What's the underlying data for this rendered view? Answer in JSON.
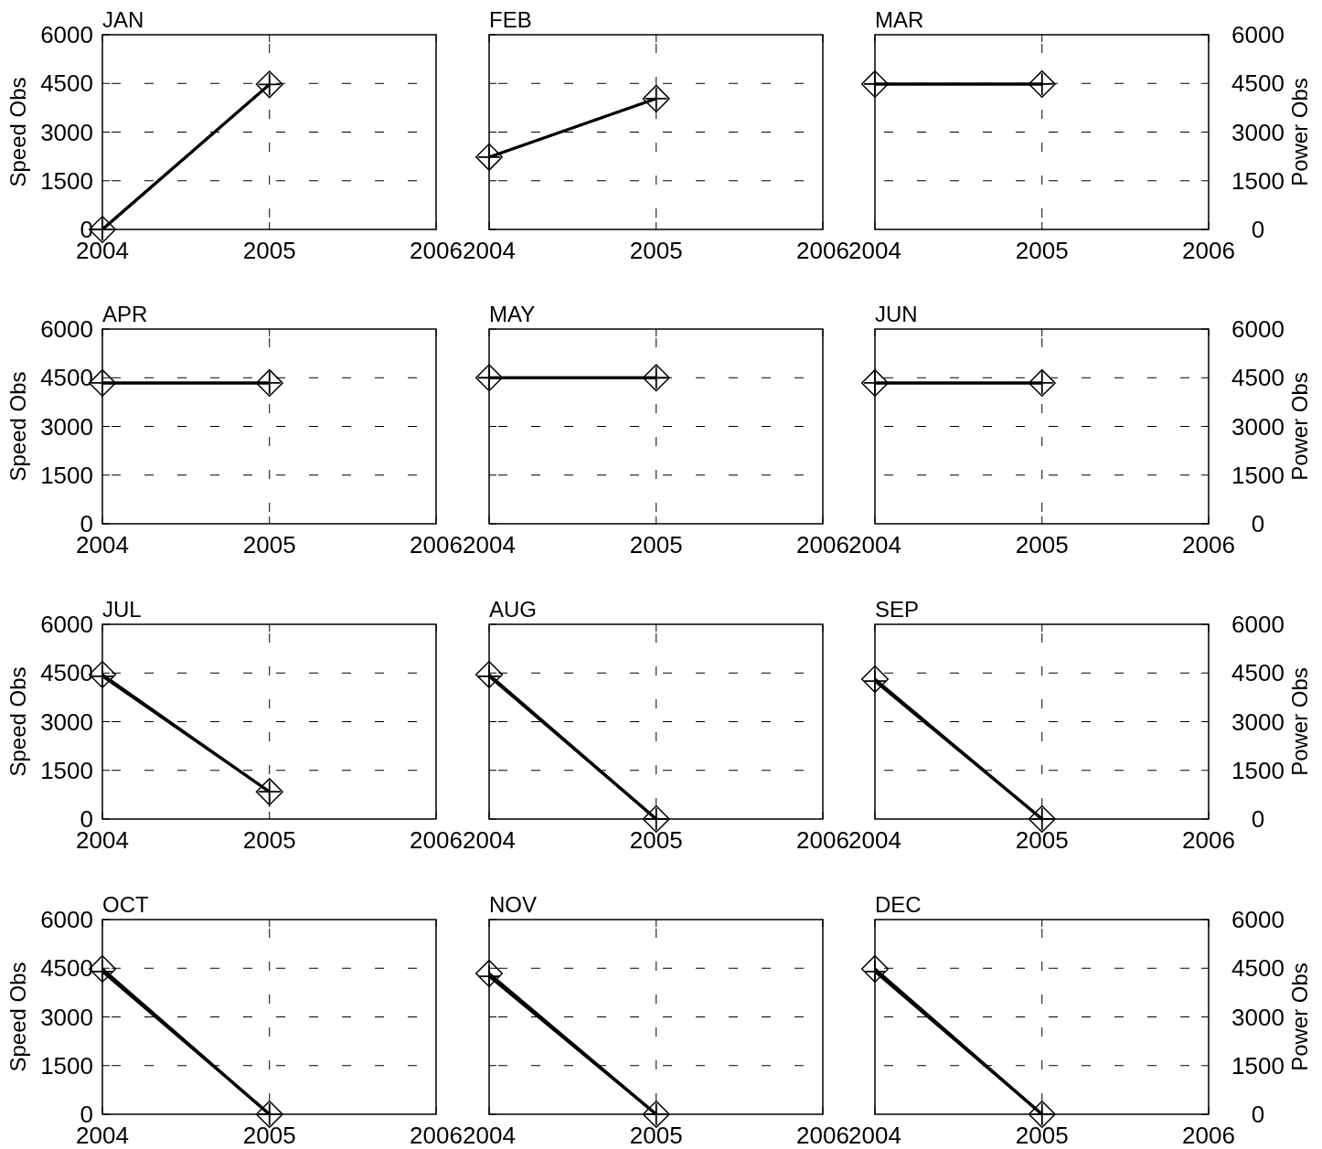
{
  "chart_data": [
    {
      "type": "line",
      "title": "JAN",
      "x": [
        "2004",
        "2005"
      ],
      "xlim": [
        "2004",
        "2006"
      ],
      "xticks": [
        "2004",
        "2005",
        "2006"
      ],
      "ylim": [
        0,
        6000
      ],
      "yticks": [
        0,
        1500,
        3000,
        4500,
        6000
      ],
      "ylabel": "Speed Obs",
      "grid": true,
      "line_style": "solid",
      "series": [
        {
          "color": "#000000",
          "marker": "cross",
          "values": [
            0,
            4470
          ]
        },
        {
          "color": "#000000",
          "marker": "diamond",
          "values": [
            0,
            4470
          ]
        }
      ]
    },
    {
      "type": "line",
      "title": "FEB",
      "x": [
        "2004",
        "2005"
      ],
      "xlim": [
        "2004",
        "2006"
      ],
      "xticks": [
        "2004",
        "2005",
        "2006"
      ],
      "ylim": [
        0,
        6000
      ],
      "yticks": [
        0,
        1500,
        3000,
        4500,
        6000
      ],
      "tick_labels": "x",
      "grid": true,
      "line_style": "solid",
      "series": [
        {
          "color": "#000000",
          "marker": "diamond",
          "values": [
            2230,
            4030
          ]
        },
        {
          "color": "#000000",
          "marker": "cross",
          "values": [
            2230,
            4030
          ]
        }
      ]
    },
    {
      "type": "line",
      "title": "MAR",
      "x": [
        "2004",
        "2005"
      ],
      "xlim": [
        "2004",
        "2006"
      ],
      "xticks": [
        "2004",
        "2005",
        "2006"
      ],
      "y2lim": [
        0,
        6000
      ],
      "y2ticks": [
        0,
        1500,
        3000,
        4500,
        6000
      ],
      "y2label": "Power Obs",
      "grid": true,
      "line_style": "solid",
      "series": [
        {
          "color": "#000000",
          "marker": "diamond",
          "axis": "y2",
          "values": [
            4480,
            4480
          ]
        },
        {
          "color": "#000000",
          "marker": "cross",
          "axis": "y2",
          "values": [
            4480,
            4480
          ]
        }
      ]
    },
    {
      "type": "line",
      "title": "APR",
      "x": [
        "2004",
        "2005"
      ],
      "xlim": [
        "2004",
        "2006"
      ],
      "xticks": [
        "2004",
        "2005",
        "2006"
      ],
      "ylim": [
        0,
        6000
      ],
      "yticks": [
        0,
        1500,
        3000,
        4500,
        6000
      ],
      "ylabel": "Speed Obs",
      "grid": true,
      "line_style": "solid",
      "series": [
        {
          "color": "#000000",
          "marker": "cross",
          "values": [
            4340,
            4340
          ]
        },
        {
          "color": "#000000",
          "marker": "diamond",
          "values": [
            4340,
            4340
          ]
        }
      ]
    },
    {
      "type": "line",
      "title": "MAY",
      "x": [
        "2004",
        "2005"
      ],
      "xlim": [
        "2004",
        "2006"
      ],
      "xticks": [
        "2004",
        "2005",
        "2006"
      ],
      "ylim": [
        0,
        6000
      ],
      "yticks": [
        0,
        1500,
        3000,
        4500,
        6000
      ],
      "tick_labels": "x",
      "grid": true,
      "line_style": "solid",
      "series": [
        {
          "color": "#000000",
          "marker": "cross",
          "values": [
            4500,
            4500
          ]
        },
        {
          "color": "#000000",
          "marker": "diamond",
          "values": [
            4500,
            4500
          ]
        }
      ]
    },
    {
      "type": "line",
      "title": "JUN",
      "x": [
        "2004",
        "2005"
      ],
      "xlim": [
        "2004",
        "2006"
      ],
      "xticks": [
        "2004",
        "2005",
        "2006"
      ],
      "y2lim": [
        0,
        6000
      ],
      "y2ticks": [
        0,
        1500,
        3000,
        4500,
        6000
      ],
      "y2label": "Power Obs",
      "grid": true,
      "line_style": "solid",
      "series": [
        {
          "color": "#000000",
          "marker": "cross",
          "axis": "y2",
          "values": [
            4340,
            4340
          ]
        },
        {
          "color": "#000000",
          "marker": "diamond",
          "axis": "y2",
          "values": [
            4340,
            4340
          ]
        }
      ]
    },
    {
      "type": "line",
      "title": "JUL",
      "x": [
        "2004",
        "2005"
      ],
      "xlim": [
        "2004",
        "2006"
      ],
      "xticks": [
        "2004",
        "2005",
        "2006"
      ],
      "ylim": [
        0,
        6000
      ],
      "yticks": [
        0,
        1500,
        3000,
        4500,
        6000
      ],
      "ylabel": "Speed Obs",
      "grid": true,
      "line_style": "solid",
      "series": [
        {
          "color": "#000000",
          "marker": "cross",
          "values": [
            4400,
            840
          ]
        },
        {
          "color": "#000000",
          "marker": "diamond",
          "values": [
            4450,
            840
          ]
        }
      ]
    },
    {
      "type": "line",
      "title": "AUG",
      "x": [
        "2004",
        "2005"
      ],
      "xlim": [
        "2004",
        "2006"
      ],
      "xticks": [
        "2004",
        "2005",
        "2006"
      ],
      "ylim": [
        0,
        6000
      ],
      "yticks": [
        0,
        1500,
        3000,
        4500,
        6000
      ],
      "tick_labels": "x",
      "grid": true,
      "line_style": "solid",
      "series": [
        {
          "color": "#000000",
          "marker": "cross",
          "values": [
            4400,
            0
          ]
        },
        {
          "color": "#000000",
          "marker": "diamond",
          "values": [
            4450,
            0
          ]
        }
      ]
    },
    {
      "type": "line",
      "title": "SEP",
      "x": [
        "2004",
        "2005"
      ],
      "xlim": [
        "2004",
        "2006"
      ],
      "xticks": [
        "2004",
        "2005",
        "2006"
      ],
      "y2lim": [
        0,
        6000
      ],
      "y2ticks": [
        0,
        1500,
        3000,
        4500,
        6000
      ],
      "y2label": "Power Obs",
      "grid": true,
      "line_style": "solid",
      "series": [
        {
          "color": "#000000",
          "marker": "cross",
          "axis": "y2",
          "values": [
            4250,
            0
          ]
        },
        {
          "color": "#000000",
          "marker": "diamond",
          "axis": "y2",
          "values": [
            4310,
            0
          ]
        }
      ]
    },
    {
      "type": "line",
      "title": "OCT",
      "x": [
        "2004",
        "2005"
      ],
      "xlim": [
        "2004",
        "2006"
      ],
      "xticks": [
        "2004",
        "2005",
        "2006"
      ],
      "ylim": [
        0,
        6000
      ],
      "yticks": [
        0,
        1500,
        3000,
        4500,
        6000
      ],
      "ylabel": "Speed Obs",
      "grid": true,
      "line_style": "solid",
      "series": [
        {
          "color": "#000000",
          "marker": "cross",
          "values": [
            4400,
            0
          ]
        },
        {
          "color": "#000000",
          "marker": "diamond",
          "values": [
            4480,
            0
          ]
        }
      ]
    },
    {
      "type": "line",
      "title": "NOV",
      "x": [
        "2004",
        "2005"
      ],
      "xlim": [
        "2004",
        "2006"
      ],
      "xticks": [
        "2004",
        "2005",
        "2006"
      ],
      "ylim": [
        0,
        6000
      ],
      "yticks": [
        0,
        1500,
        3000,
        4500,
        6000
      ],
      "tick_labels": "x",
      "grid": true,
      "line_style": "solid",
      "series": [
        {
          "color": "#000000",
          "marker": "cross",
          "values": [
            4250,
            0
          ]
        },
        {
          "color": "#000000",
          "marker": "diamond",
          "values": [
            4340,
            0
          ]
        }
      ]
    },
    {
      "type": "line",
      "title": "DEC",
      "x": [
        "2004",
        "2005"
      ],
      "xlim": [
        "2004",
        "2006"
      ],
      "xticks": [
        "2004",
        "2005",
        "2006"
      ],
      "y2lim": [
        0,
        6000
      ],
      "y2ticks": [
        0,
        1500,
        3000,
        4500,
        6000
      ],
      "y2label": "Power Obs",
      "grid": true,
      "line_style": "solid",
      "series": [
        {
          "color": "#000000",
          "marker": "cross",
          "axis": "y2",
          "values": [
            4400,
            0
          ]
        },
        {
          "color": "#000000",
          "marker": "diamond",
          "axis": "y2",
          "values": [
            4480,
            0
          ]
        }
      ]
    }
  ]
}
